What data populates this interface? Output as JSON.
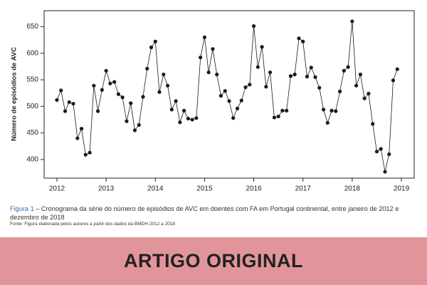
{
  "chart_data": {
    "type": "line",
    "ylabel": "Número de episódios de AVC",
    "x": [
      2012.0,
      2012.083,
      2012.167,
      2012.25,
      2012.333,
      2012.417,
      2012.5,
      2012.583,
      2012.667,
      2012.75,
      2012.833,
      2012.917,
      2013.0,
      2013.083,
      2013.167,
      2013.25,
      2013.333,
      2013.417,
      2013.5,
      2013.583,
      2013.667,
      2013.75,
      2013.833,
      2013.917,
      2014.0,
      2014.083,
      2014.167,
      2014.25,
      2014.333,
      2014.417,
      2014.5,
      2014.583,
      2014.667,
      2014.75,
      2014.833,
      2014.917,
      2015.0,
      2015.083,
      2015.167,
      2015.25,
      2015.333,
      2015.417,
      2015.5,
      2015.583,
      2015.667,
      2015.75,
      2015.833,
      2015.917,
      2016.0,
      2016.083,
      2016.167,
      2016.25,
      2016.333,
      2016.417,
      2016.5,
      2016.583,
      2016.667,
      2016.75,
      2016.833,
      2016.917,
      2017.0,
      2017.083,
      2017.167,
      2017.25,
      2017.333,
      2017.417,
      2017.5,
      2017.583,
      2017.667,
      2017.75,
      2017.833,
      2017.917,
      2018.0,
      2018.083,
      2018.167,
      2018.25,
      2018.333,
      2018.417,
      2018.5,
      2018.583,
      2018.667,
      2018.75,
      2018.833,
      2018.917
    ],
    "values": [
      512,
      530,
      491,
      508,
      505,
      440,
      458,
      409,
      413,
      539,
      491,
      531,
      567,
      543,
      546,
      523,
      517,
      472,
      506,
      455,
      465,
      518,
      571,
      611,
      622,
      527,
      560,
      539,
      494,
      510,
      470,
      492,
      477,
      475,
      478,
      592,
      630,
      564,
      608,
      560,
      520,
      529,
      510,
      478,
      496,
      511,
      536,
      541,
      651,
      574,
      612,
      537,
      564,
      479,
      481,
      492,
      492,
      557,
      560,
      628,
      622,
      556,
      573,
      555,
      535,
      494,
      469,
      492,
      491,
      528,
      567,
      574,
      660,
      539,
      560,
      515,
      524,
      467,
      415,
      420,
      377,
      410,
      549,
      570
    ],
    "color": "#1a1a1a",
    "xlim": [
      2011.74,
      2019.26
    ],
    "xticks": [
      2012,
      2013,
      2014,
      2015,
      2016,
      2017,
      2018,
      2019
    ],
    "ylim": [
      365,
      680
    ],
    "yticks": [
      400,
      450,
      500,
      550,
      600,
      650
    ]
  },
  "caption": {
    "label": "Figura 1",
    "text": " – Cronograma da série do número de episódios de AVC em doentes com FA em Portugal continental, entre janeiro de 2012 e dezembro de 2018",
    "source": "Fonte: Figura elaborada pelos autores a partir dos dados da BMDH 2012 a 2018"
  },
  "banner": "ARTIGO ORIGINAL"
}
